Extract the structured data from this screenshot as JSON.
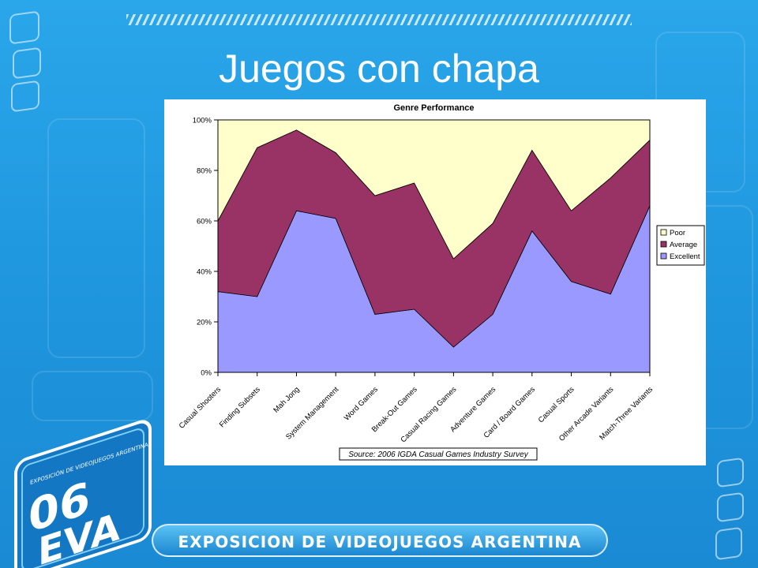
{
  "slide": {
    "title": "Juegos con chapa",
    "footer_banner": "EXPOSICION DE VIDEOJUEGOS ARGENTINA",
    "logo": {
      "small_text": "EXPOSICIÓN DE VIDEOJUEGOS ARGENTINA",
      "number": "06",
      "acronym": "EVA"
    }
  },
  "chart_data": {
    "type": "area",
    "stacking": "percent",
    "title": "Genre Performance",
    "categories": [
      "Casual Shooters",
      "Finding Subsets",
      "Mah Jong",
      "System Management",
      "Word Games",
      "Break-Out Games",
      "Casual Racing Games",
      "Adventure Games",
      "Card / Board Games",
      "Casual Sports",
      "Other Arcade Variants",
      "Match-Three Variants"
    ],
    "series": [
      {
        "name": "Excellent",
        "values": [
          32,
          30,
          64,
          61,
          23,
          25,
          10,
          23,
          56,
          36,
          31,
          66
        ],
        "color": "#9999ff"
      },
      {
        "name": "Average",
        "values": [
          28,
          59,
          32,
          26,
          47,
          50,
          35,
          36,
          32,
          28,
          46,
          26
        ],
        "color": "#993366"
      },
      {
        "name": "Poor",
        "values": [
          40,
          11,
          4,
          13,
          30,
          25,
          55,
          41,
          12,
          36,
          23,
          8
        ],
        "color": "#ffffcc"
      }
    ],
    "legend_order": [
      "Poor",
      "Average",
      "Excellent"
    ],
    "yticks": [
      "0%",
      "20%",
      "40%",
      "60%",
      "80%",
      "100%"
    ],
    "ylim": [
      0,
      100
    ],
    "legend_position": "right",
    "grid": false,
    "source": "Source: 2006 IGDA Casual Games Industry Survey"
  }
}
